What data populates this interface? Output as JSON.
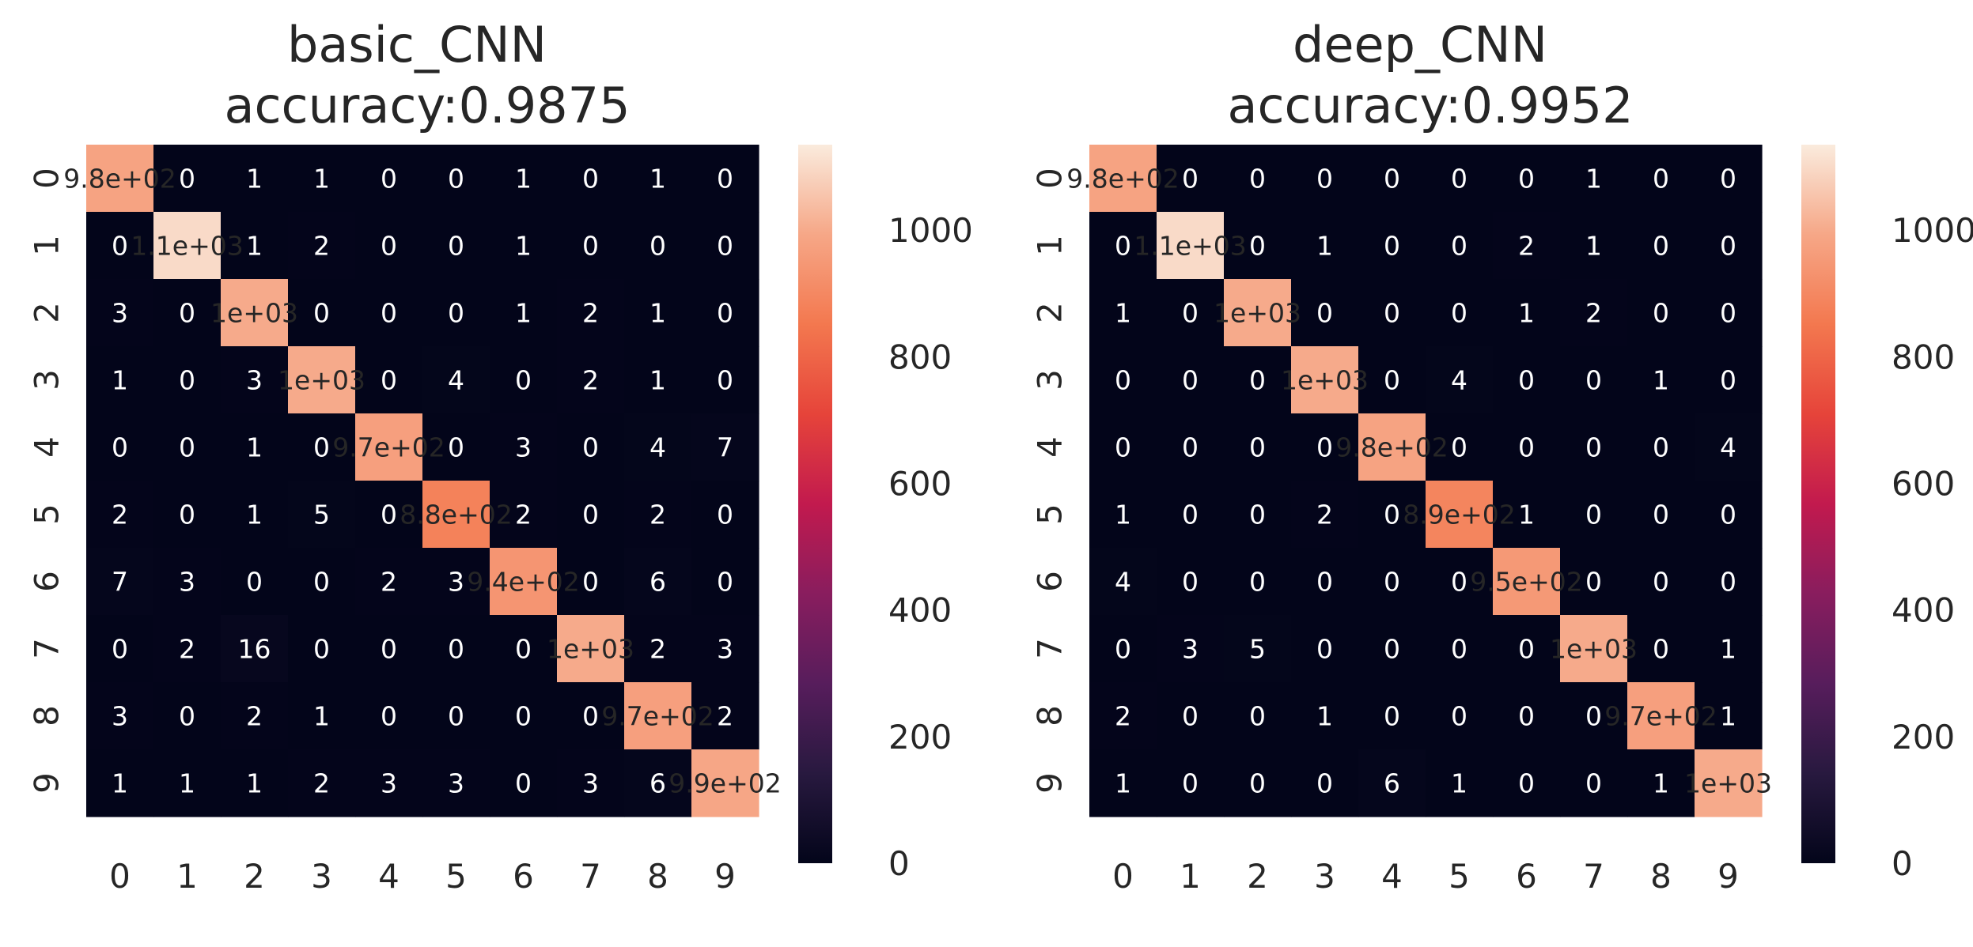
{
  "chart_data": [
    {
      "type": "heatmap",
      "title_lines": [
        "basic_CNN",
        "accuracy:0.9875"
      ],
      "x_ticks": [
        "0",
        "1",
        "2",
        "3",
        "4",
        "5",
        "6",
        "7",
        "8",
        "9"
      ],
      "y_ticks": [
        "0",
        "1",
        "2",
        "3",
        "4",
        "5",
        "6",
        "7",
        "8",
        "9"
      ],
      "values": [
        [
          980,
          0,
          1,
          1,
          0,
          0,
          1,
          0,
          1,
          0
        ],
        [
          0,
          1100,
          1,
          2,
          0,
          0,
          1,
          0,
          0,
          0
        ],
        [
          3,
          0,
          1000,
          0,
          0,
          0,
          1,
          2,
          1,
          0
        ],
        [
          1,
          0,
          3,
          1000,
          0,
          4,
          0,
          2,
          1,
          0
        ],
        [
          0,
          0,
          1,
          0,
          970,
          0,
          3,
          0,
          4,
          7
        ],
        [
          2,
          0,
          1,
          5,
          0,
          880,
          2,
          0,
          2,
          0
        ],
        [
          7,
          3,
          0,
          0,
          2,
          3,
          940,
          0,
          6,
          0
        ],
        [
          0,
          2,
          16,
          0,
          0,
          0,
          0,
          1000,
          2,
          3
        ],
        [
          3,
          0,
          2,
          1,
          0,
          0,
          0,
          0,
          970,
          2
        ],
        [
          1,
          1,
          1,
          2,
          3,
          3,
          0,
          3,
          6,
          990
        ]
      ],
      "annotations": [
        [
          "9.8e+02",
          "0",
          "1",
          "1",
          "0",
          "0",
          "1",
          "0",
          "1",
          "0"
        ],
        [
          "0",
          "1.1e+03",
          "1",
          "2",
          "0",
          "0",
          "1",
          "0",
          "0",
          "0"
        ],
        [
          "3",
          "0",
          "1e+03",
          "0",
          "0",
          "0",
          "1",
          "2",
          "1",
          "0"
        ],
        [
          "1",
          "0",
          "3",
          "1e+03",
          "0",
          "4",
          "0",
          "2",
          "1",
          "0"
        ],
        [
          "0",
          "0",
          "1",
          "0",
          "9.7e+02",
          "0",
          "3",
          "0",
          "4",
          "7"
        ],
        [
          "2",
          "0",
          "1",
          "5",
          "0",
          "8.8e+02",
          "2",
          "0",
          "2",
          "0"
        ],
        [
          "7",
          "3",
          "0",
          "0",
          "2",
          "3",
          "9.4e+02",
          "0",
          "6",
          "0"
        ],
        [
          "0",
          "2",
          "16",
          "0",
          "0",
          "0",
          "0",
          "1e+03",
          "2",
          "3"
        ],
        [
          "3",
          "0",
          "2",
          "1",
          "0",
          "0",
          "0",
          "0",
          "9.7e+02",
          "2"
        ],
        [
          "1",
          "1",
          "1",
          "2",
          "3",
          "3",
          "0",
          "3",
          "6",
          "9.9e+02"
        ]
      ],
      "colorbar": {
        "range": [
          0,
          1135
        ],
        "ticks": [
          "0",
          "200",
          "400",
          "600",
          "800",
          "1000"
        ],
        "tick_values": [
          0,
          200,
          400,
          600,
          800,
          1000
        ]
      },
      "colormap": "rocket"
    },
    {
      "type": "heatmap",
      "title_lines": [
        "deep_CNN",
        "accuracy:0.9952"
      ],
      "x_ticks": [
        "0",
        "1",
        "2",
        "3",
        "4",
        "5",
        "6",
        "7",
        "8",
        "9"
      ],
      "y_ticks": [
        "0",
        "1",
        "2",
        "3",
        "4",
        "5",
        "6",
        "7",
        "8",
        "9"
      ],
      "values": [
        [
          980,
          0,
          0,
          0,
          0,
          0,
          0,
          1,
          0,
          0
        ],
        [
          0,
          1100,
          0,
          1,
          0,
          0,
          2,
          1,
          0,
          0
        ],
        [
          1,
          0,
          1000,
          0,
          0,
          0,
          1,
          2,
          0,
          0
        ],
        [
          0,
          0,
          0,
          1000,
          0,
          4,
          0,
          0,
          1,
          0
        ],
        [
          0,
          0,
          0,
          0,
          980,
          0,
          0,
          0,
          0,
          4
        ],
        [
          1,
          0,
          0,
          2,
          0,
          890,
          1,
          0,
          0,
          0
        ],
        [
          4,
          0,
          0,
          0,
          0,
          0,
          950,
          0,
          0,
          0
        ],
        [
          0,
          3,
          5,
          0,
          0,
          0,
          0,
          1000,
          0,
          1
        ],
        [
          2,
          0,
          0,
          1,
          0,
          0,
          0,
          0,
          970,
          1
        ],
        [
          1,
          0,
          0,
          0,
          6,
          1,
          0,
          0,
          1,
          1000
        ]
      ],
      "annotations": [
        [
          "9.8e+02",
          "0",
          "0",
          "0",
          "0",
          "0",
          "0",
          "1",
          "0",
          "0"
        ],
        [
          "0",
          "1.1e+03",
          "0",
          "1",
          "0",
          "0",
          "2",
          "1",
          "0",
          "0"
        ],
        [
          "1",
          "0",
          "1e+03",
          "0",
          "0",
          "0",
          "1",
          "2",
          "0",
          "0"
        ],
        [
          "0",
          "0",
          "0",
          "1e+03",
          "0",
          "4",
          "0",
          "0",
          "1",
          "0"
        ],
        [
          "0",
          "0",
          "0",
          "0",
          "9.8e+02",
          "0",
          "0",
          "0",
          "0",
          "4"
        ],
        [
          "1",
          "0",
          "0",
          "2",
          "0",
          "8.9e+02",
          "1",
          "0",
          "0",
          "0"
        ],
        [
          "4",
          "0",
          "0",
          "0",
          "0",
          "0",
          "9.5e+02",
          "0",
          "0",
          "0"
        ],
        [
          "0",
          "3",
          "5",
          "0",
          "0",
          "0",
          "0",
          "1e+03",
          "0",
          "1"
        ],
        [
          "2",
          "0",
          "0",
          "1",
          "0",
          "0",
          "0",
          "0",
          "9.7e+02",
          "1"
        ],
        [
          "1",
          "0",
          "0",
          "0",
          "6",
          "1",
          "0",
          "0",
          "1",
          "1e+03"
        ]
      ],
      "colorbar": {
        "range": [
          0,
          1135
        ],
        "ticks": [
          "0",
          "200",
          "400",
          "600",
          "800",
          "1000"
        ],
        "tick_values": [
          0,
          200,
          400,
          600,
          800,
          1000
        ]
      },
      "colormap": "rocket"
    }
  ]
}
